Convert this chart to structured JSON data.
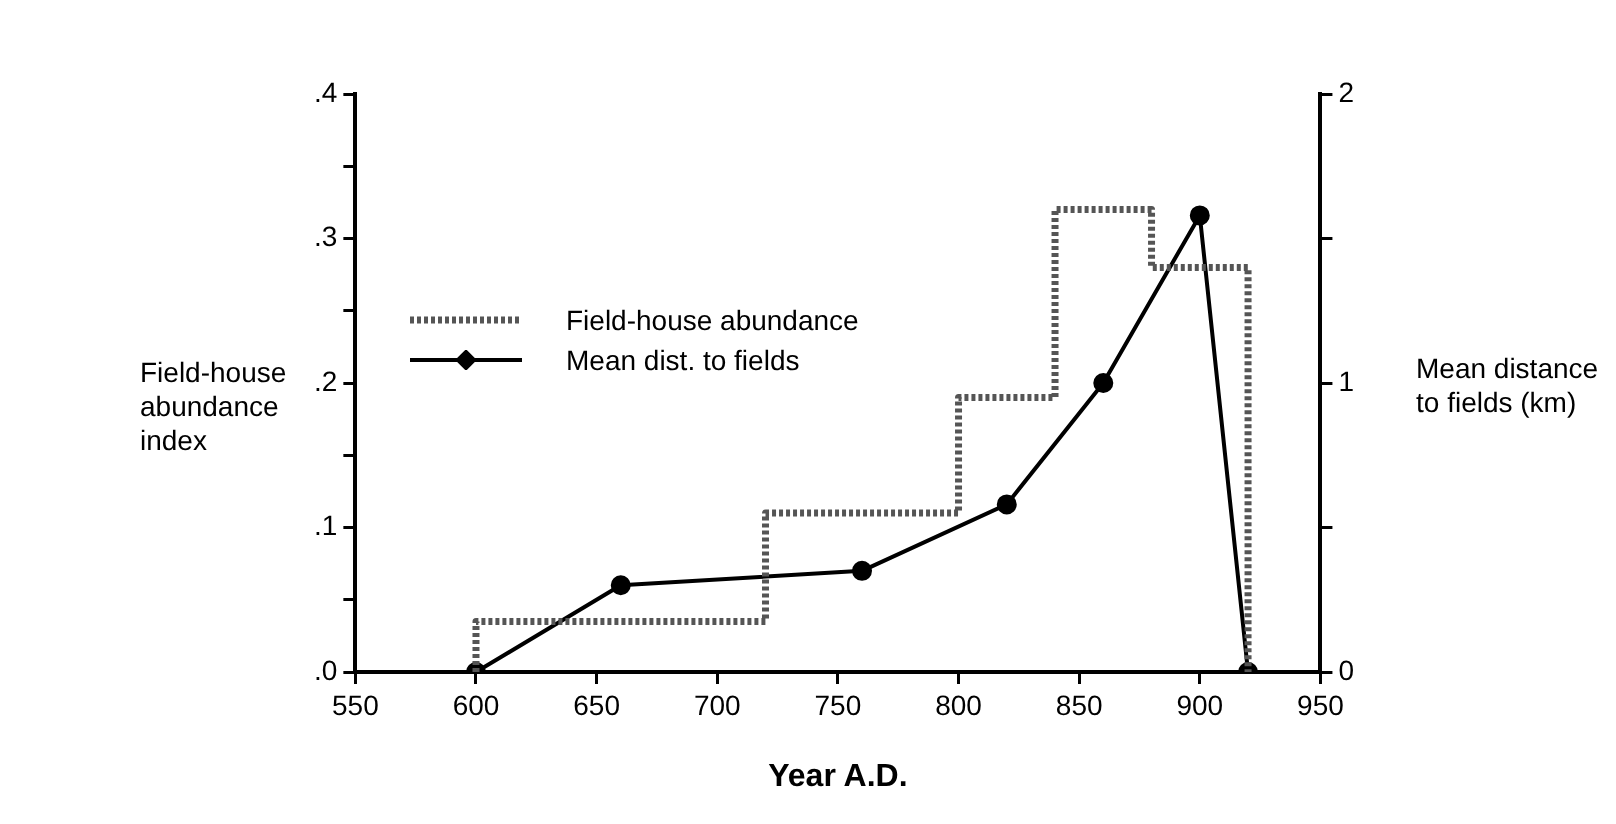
{
  "chart_data": {
    "type": "line",
    "xlabel": "Year A.D.",
    "ylabel": "Field-house abundance index",
    "y2label": "Mean distance to fields (km)",
    "xlim": [
      550,
      950
    ],
    "xticks": [
      550,
      600,
      650,
      700,
      750,
      800,
      850,
      900,
      950
    ],
    "ylim": [
      0,
      0.4
    ],
    "yticks": [
      {
        "value": 0,
        "label": ".0"
      },
      {
        "value": 0.05,
        "label": null
      },
      {
        "value": 0.1,
        "label": ".1"
      },
      {
        "value": 0.15,
        "label": null
      },
      {
        "value": 0.2,
        "label": ".2"
      },
      {
        "value": 0.25,
        "label": null
      },
      {
        "value": 0.3,
        "label": ".3"
      },
      {
        "value": 0.35,
        "label": null
      },
      {
        "value": 0.4,
        "label": ".4"
      }
    ],
    "y2lim": [
      0,
      2
    ],
    "y2ticks": [
      0,
      {
        "value": 0.5,
        "label": null
      },
      1,
      {
        "value": 1.5,
        "label": null
      },
      2
    ],
    "grid": false,
    "legend": "left",
    "series": [
      {
        "name": "Field-house abundance",
        "type": "step",
        "color": "#555555",
        "line_style": "dotted",
        "marker": "none",
        "x": [
          600,
          600,
          720,
          800,
          840,
          880,
          920
        ],
        "values": [
          0,
          0.035,
          0.11,
          0.19,
          0.32,
          0.28,
          0
        ]
      },
      {
        "name": "Mean dist. to fields",
        "type": "line",
        "axis": "y2",
        "color": "#000000",
        "line_style": "solid",
        "marker": "circle",
        "x": [
          600,
          660,
          760,
          820,
          860,
          900,
          920
        ],
        "values": [
          0,
          0.3,
          0.35,
          0.58,
          1.0,
          1.58,
          0
        ]
      }
    ]
  }
}
